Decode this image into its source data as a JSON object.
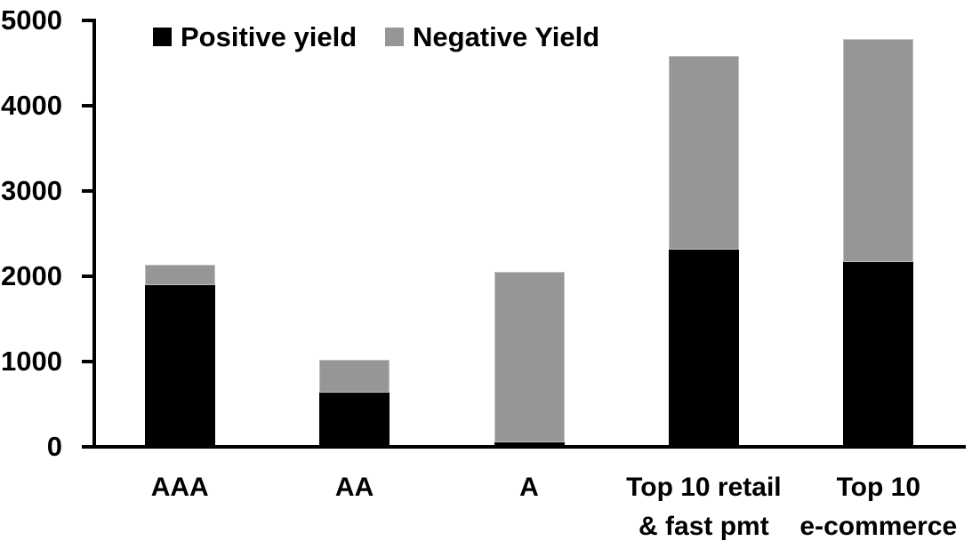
{
  "chart_data": {
    "type": "bar",
    "stacked": true,
    "title": "",
    "xlabel": "",
    "ylabel": "",
    "categories": [
      "AAA",
      "AA",
      "A",
      "Top 10 retail\n& fast pmt",
      "Top 10\ne-commerce"
    ],
    "series": [
      {
        "name": "Positive yield",
        "color": "#000000",
        "values": [
          1890,
          630,
          40,
          2300,
          2160
        ]
      },
      {
        "name": "Negative Yield",
        "color": "#969696",
        "values": [
          235,
          385,
          2000,
          2270,
          2610
        ]
      }
    ],
    "y_axis": {
      "min": 0,
      "max": 5000,
      "tick_step": 1000,
      "tick_labels": [
        "0",
        "1000",
        "2000",
        "3000",
        "4000",
        "5000"
      ]
    },
    "grid": false,
    "legend_position": "top",
    "background_color": "#ffffff",
    "axis_color": "#000000"
  }
}
